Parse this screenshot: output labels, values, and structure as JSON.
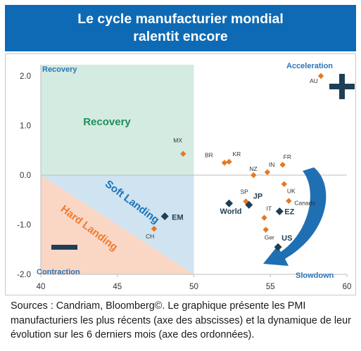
{
  "title": {
    "line1": "Le cycle manufacturier mondial",
    "line2": "ralentit encore"
  },
  "colors": {
    "banner": "#0e6ab4",
    "recovery_fill": "#d4ebe1",
    "soft_fill": "#cfe3f1",
    "hard_fill": "#fad6c5",
    "recovery_text": "#1f8f5a",
    "soft_text": "#1a73b8",
    "hard_text": "#ee7d31",
    "quadrant_label": "#2e74b5",
    "country_marker": "#e87722",
    "region_marker": "#1f3f55"
  },
  "chart_data": {
    "type": "scatter",
    "xlim": [
      40,
      60
    ],
    "ylim": [
      -2.0,
      2.2
    ],
    "x_ticks": [
      "40",
      "45",
      "50",
      "55",
      "60"
    ],
    "y_ticks": [
      "2.0",
      "1.0",
      "0.0",
      "-1.0",
      "-2.0"
    ],
    "x_tick_values": [
      40,
      45,
      50,
      55,
      60
    ],
    "y_tick_values": [
      2.0,
      1.0,
      0.0,
      -1.0,
      -2.0
    ],
    "zones": {
      "recovery": "Recovery",
      "soft_landing": "Soft Landing",
      "hard_landing": "Hard Landing"
    },
    "quadrants": {
      "recovery": "Recovery",
      "acceleration": "Acceleration",
      "contraction": "Contraction",
      "slowdown": "Slowdown"
    },
    "countries": [
      {
        "label": "AU",
        "x": 58.3,
        "y": 2.0
      },
      {
        "label": "MX",
        "x": 49.3,
        "y": 0.43
      },
      {
        "label": "BR",
        "x": 52.0,
        "y": 0.25
      },
      {
        "label": "KR",
        "x": 52.3,
        "y": 0.27
      },
      {
        "label": "NZ",
        "x": 53.9,
        "y": 0.0
      },
      {
        "label": "IN",
        "x": 54.8,
        "y": 0.06
      },
      {
        "label": "FR",
        "x": 55.8,
        "y": 0.21
      },
      {
        "label": "UK",
        "x": 55.9,
        "y": -0.18
      },
      {
        "label": "Canada",
        "x": 56.2,
        "y": -0.52
      },
      {
        "label": "SP",
        "x": 53.4,
        "y": -0.53
      },
      {
        "label": "IT",
        "x": 54.6,
        "y": -0.86
      },
      {
        "label": "Ger",
        "x": 54.7,
        "y": -1.1
      },
      {
        "label": "CH",
        "x": 47.4,
        "y": -1.08
      }
    ],
    "regions": [
      {
        "label": "EM",
        "x": 48.1,
        "y": -0.83
      },
      {
        "label": "World",
        "x": 52.3,
        "y": -0.57
      },
      {
        "label": "JP",
        "x": 53.6,
        "y": -0.6
      },
      {
        "label": "EZ",
        "x": 55.6,
        "y": -0.73
      },
      {
        "label": "US",
        "x": 55.5,
        "y": -1.45
      }
    ]
  },
  "caption": "Sources : Candriam, Bloomberg©. Le graphique présente les PMI manufacturiers les plus récents (axe des abscisses) et la dynamique de leur évolution sur les 6 derniers mois (axe des ordonnées)."
}
